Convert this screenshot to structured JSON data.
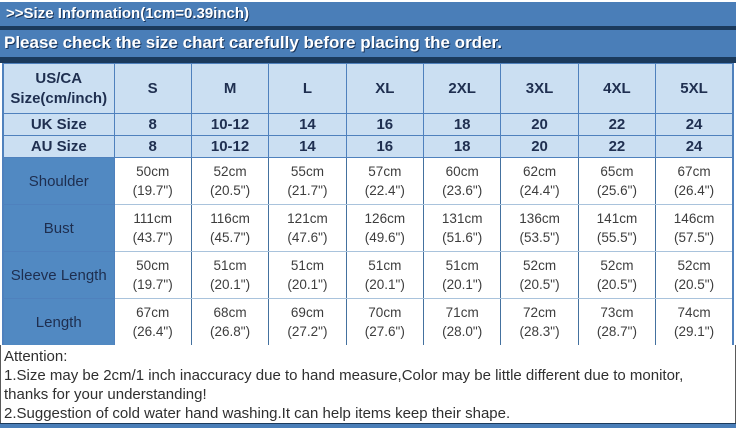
{
  "banners": {
    "title": ">>Size Information(1cm=0.39inch)",
    "notice": "Please check the size chart carefully before placing the order."
  },
  "colors": {
    "banner_blue": "#4a7eb8",
    "dark_navy": "#1b3a5c",
    "header_bg": "#cbdff2",
    "label_cell_blue": "#5189c2",
    "grid_border": "#4f81bd"
  },
  "size_table": {
    "header": [
      "US/CA Size(cm/inch)",
      "S",
      "M",
      "L",
      "XL",
      "2XL",
      "3XL",
      "4XL",
      "5XL"
    ],
    "uk_row": {
      "label": "UK Size",
      "values": [
        "8",
        "10-12",
        "14",
        "16",
        "18",
        "20",
        "22",
        "24"
      ]
    },
    "au_row": {
      "label": "AU Size",
      "values": [
        "8",
        "10-12",
        "14",
        "16",
        "18",
        "20",
        "22",
        "24"
      ]
    },
    "measure_rows": [
      {
        "label": "Shoulder",
        "cm": [
          "50cm",
          "52cm",
          "55cm",
          "57cm",
          "60cm",
          "62cm",
          "65cm",
          "67cm"
        ],
        "inch": [
          "(19.7\")",
          "(20.5\")",
          "(21.7\")",
          "(22.4\")",
          "(23.6\")",
          "(24.4\")",
          "(25.6\")",
          "(26.4\")"
        ]
      },
      {
        "label": "Bust",
        "cm": [
          "111cm",
          "116cm",
          "121cm",
          "126cm",
          "131cm",
          "136cm",
          "141cm",
          "146cm"
        ],
        "inch": [
          "(43.7\")",
          "(45.7\")",
          "(47.6\")",
          "(49.6\")",
          "(51.6\")",
          "(53.5\")",
          "(55.5\")",
          "(57.5\")"
        ]
      },
      {
        "label": "Sleeve Length",
        "cm": [
          "50cm",
          "51cm",
          "51cm",
          "51cm",
          "51cm",
          "52cm",
          "52cm",
          "52cm"
        ],
        "inch": [
          "(19.7\")",
          "(20.1\")",
          "(20.1\")",
          "(20.1\")",
          "(20.1\")",
          "(20.5\")",
          "(20.5\")",
          "(20.5\")"
        ]
      },
      {
        "label": "Length",
        "cm": [
          "67cm",
          "68cm",
          "69cm",
          "70cm",
          "71cm",
          "72cm",
          "73cm",
          "74cm"
        ],
        "inch": [
          "(26.4\")",
          "(26.8\")",
          "(27.2\")",
          "(27.6\")",
          "(28.0\")",
          "(28.3\")",
          "(28.7\")",
          "(29.1\")"
        ]
      }
    ]
  },
  "attention": {
    "title": "Attention:",
    "line1": "1.Size may be 2cm/1 inch inaccuracy due to hand measure,Color may be little different due to monitor,",
    "line2": "thanks for your understanding!",
    "line3": "2.Suggestion of cold water hand washing.It can help items keep their shape."
  }
}
